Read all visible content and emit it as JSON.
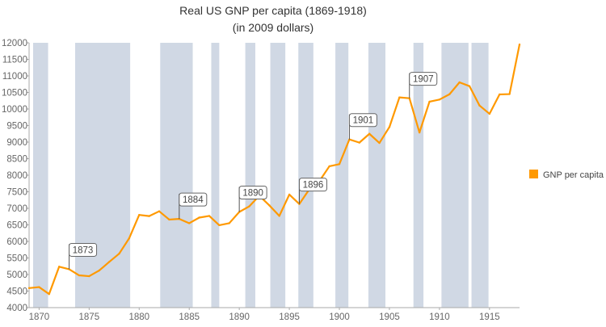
{
  "chart_data": {
    "type": "line",
    "title": "Real US GNP per capita (1869-1918)",
    "subtitle": "(in 2009 dollars)",
    "xlabel": "",
    "ylabel": "",
    "xlim": [
      1869,
      1918
    ],
    "ylim": [
      4000,
      12000
    ],
    "x_ticks": [
      1870,
      1875,
      1880,
      1885,
      1890,
      1895,
      1900,
      1905,
      1910,
      1915
    ],
    "y_ticks": [
      4000,
      4500,
      5000,
      5500,
      6000,
      6500,
      7000,
      7500,
      8000,
      8500,
      9000,
      9500,
      10000,
      10500,
      11000,
      11500,
      12000
    ],
    "grid": false,
    "legend_position": "right",
    "series": [
      {
        "name": "GNP per capita",
        "color": "#ff9900",
        "x": [
          1869,
          1870,
          1871,
          1872,
          1873,
          1874,
          1875,
          1876,
          1877,
          1878,
          1879,
          1880,
          1881,
          1882,
          1883,
          1884,
          1885,
          1886,
          1887,
          1888,
          1889,
          1890,
          1891,
          1892,
          1893,
          1894,
          1895,
          1896,
          1897,
          1898,
          1899,
          1900,
          1901,
          1902,
          1903,
          1904,
          1905,
          1906,
          1907,
          1908,
          1909,
          1910,
          1911,
          1912,
          1913,
          1914,
          1915,
          1916,
          1917,
          1918
        ],
        "values": [
          4590,
          4620,
          4410,
          5235,
          5160,
          4975,
          4950,
          5120,
          5380,
          5630,
          6095,
          6800,
          6765,
          6910,
          6660,
          6680,
          6550,
          6720,
          6770,
          6490,
          6550,
          6890,
          7060,
          7380,
          7090,
          6770,
          7415,
          7130,
          7575,
          7820,
          8270,
          8335,
          9080,
          8985,
          9250,
          8975,
          9455,
          10350,
          10325,
          9290,
          10220,
          10285,
          10445,
          10805,
          10690,
          10105,
          9855,
          10440,
          10450,
          11950
        ]
      }
    ],
    "shaded_bands": {
      "color": "#d0d8e4",
      "ranges": [
        [
          1869.4,
          1870.9
        ],
        [
          1873.6,
          1879.1
        ],
        [
          1882.1,
          1885.35
        ],
        [
          1887.2,
          1888.0
        ],
        [
          1890.6,
          1891.6
        ],
        [
          1893.1,
          1894.6
        ],
        [
          1895.9,
          1897.4
        ],
        [
          1899.6,
          1900.9
        ],
        [
          1902.9,
          1904.6
        ],
        [
          1907.4,
          1908.4
        ],
        [
          1910.2,
          1912.9
        ],
        [
          1913.2,
          1914.9
        ]
      ]
    },
    "annotations": [
      {
        "x": 1873,
        "label": "1873"
      },
      {
        "x": 1884,
        "label": "1884"
      },
      {
        "x": 1890,
        "label": "1890"
      },
      {
        "x": 1896,
        "label": "1896"
      },
      {
        "x": 1901,
        "label": "1901"
      },
      {
        "x": 1907,
        "label": "1907"
      }
    ]
  }
}
